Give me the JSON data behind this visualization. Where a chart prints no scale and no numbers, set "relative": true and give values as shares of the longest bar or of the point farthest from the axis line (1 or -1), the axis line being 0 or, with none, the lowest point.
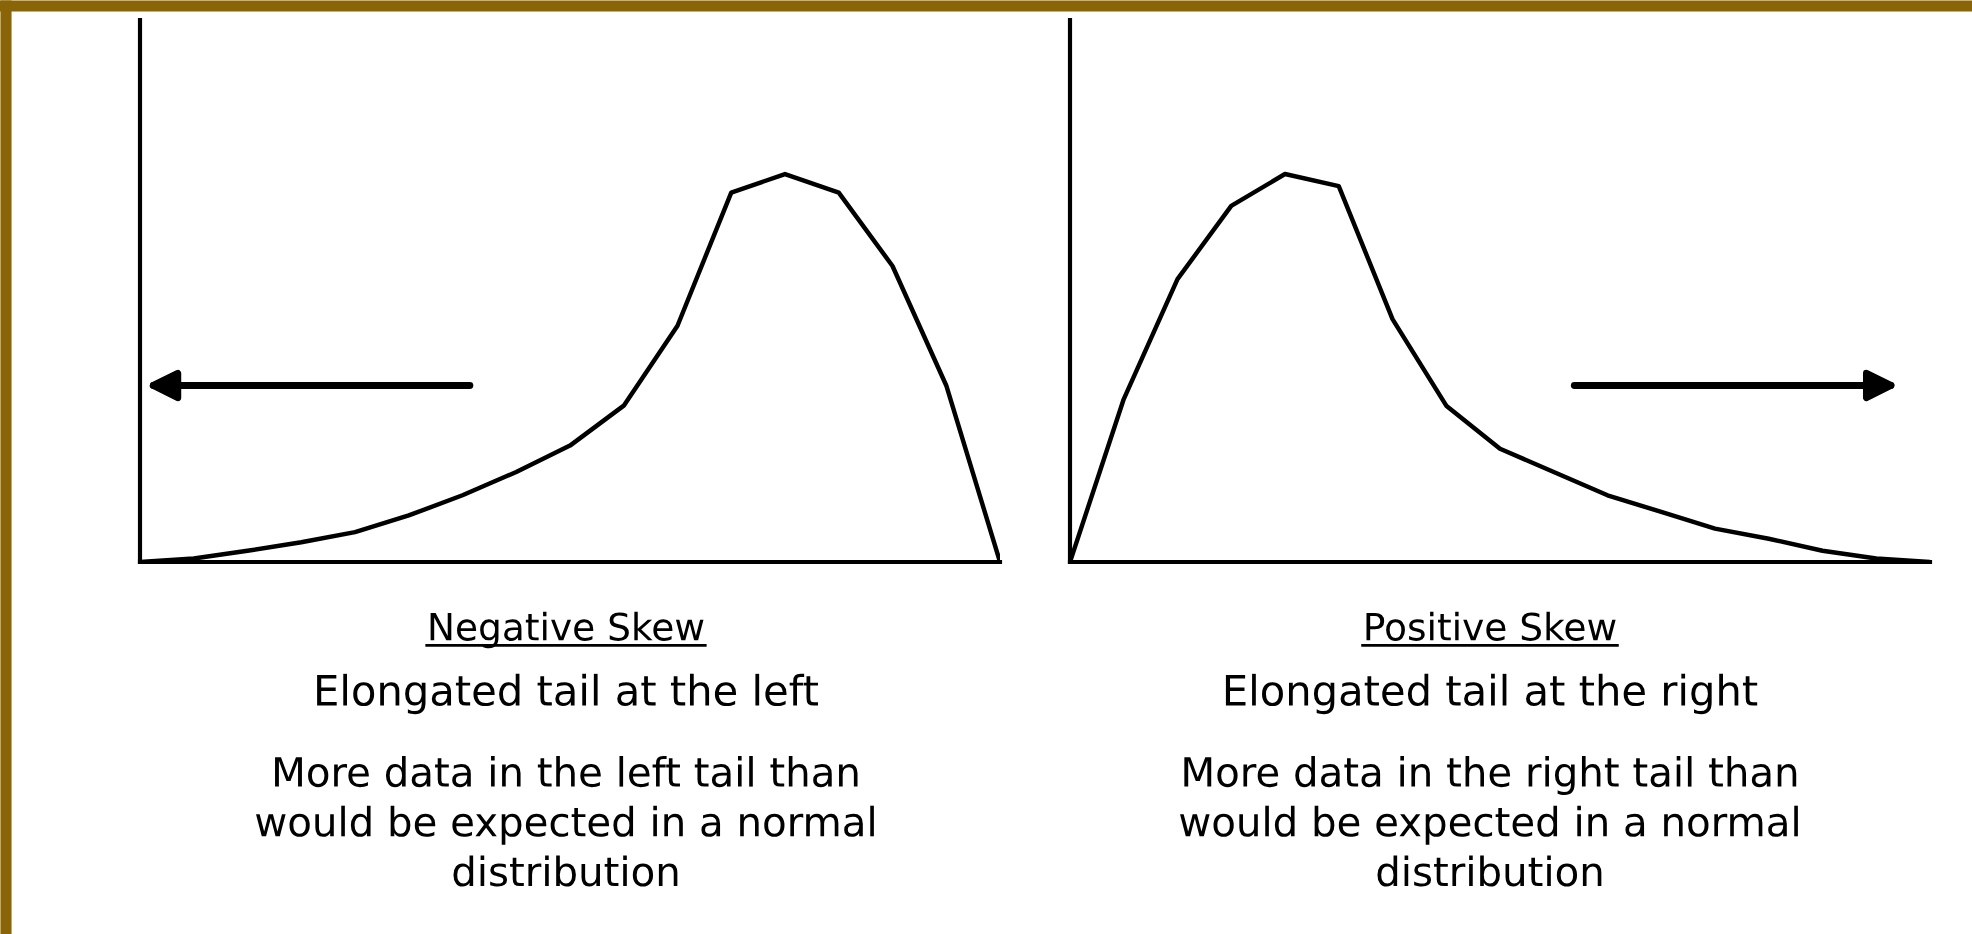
{
  "chart_data": [
    {
      "type": "line",
      "relative": true,
      "categories": [
        null,
        null,
        null,
        null,
        null,
        null,
        null,
        null,
        null,
        null,
        null,
        null,
        null,
        null,
        null,
        null,
        null
      ],
      "series": [
        {
          "color": "#000000",
          "values": [
            0,
            0.009,
            0.029,
            0.051,
            0.077,
            0.12,
            0.172,
            0.232,
            0.3,
            0.403,
            0.609,
            0.952,
            1,
            0.952,
            0.763,
            0.455,
            0
          ]
        }
      ],
      "xlabel": "Negative Skew",
      "annotations": [
        "Elongated tail at the left",
        "More data in the left tail than\nwould be expected in a normal\ndistribution"
      ]
    },
    {
      "type": "line",
      "relative": true,
      "categories": [
        null,
        null,
        null,
        null,
        null,
        null,
        null,
        null,
        null,
        null,
        null,
        null,
        null,
        null,
        null,
        null,
        null
      ],
      "series": [
        {
          "color": "#000000",
          "values": [
            0,
            0.42,
            0.729,
            0.918,
            1,
            0.969,
            0.626,
            0.403,
            0.292,
            0.232,
            0.172,
            0.129,
            0.086,
            0.06,
            0.029,
            0.009,
            0
          ]
        }
      ],
      "xlabel": "Positive Skew",
      "annotations": [
        "Elongated tail at the right",
        "More data in the right tail than\nwould be expected in a normal\ndistribution"
      ]
    }
  ]
}
